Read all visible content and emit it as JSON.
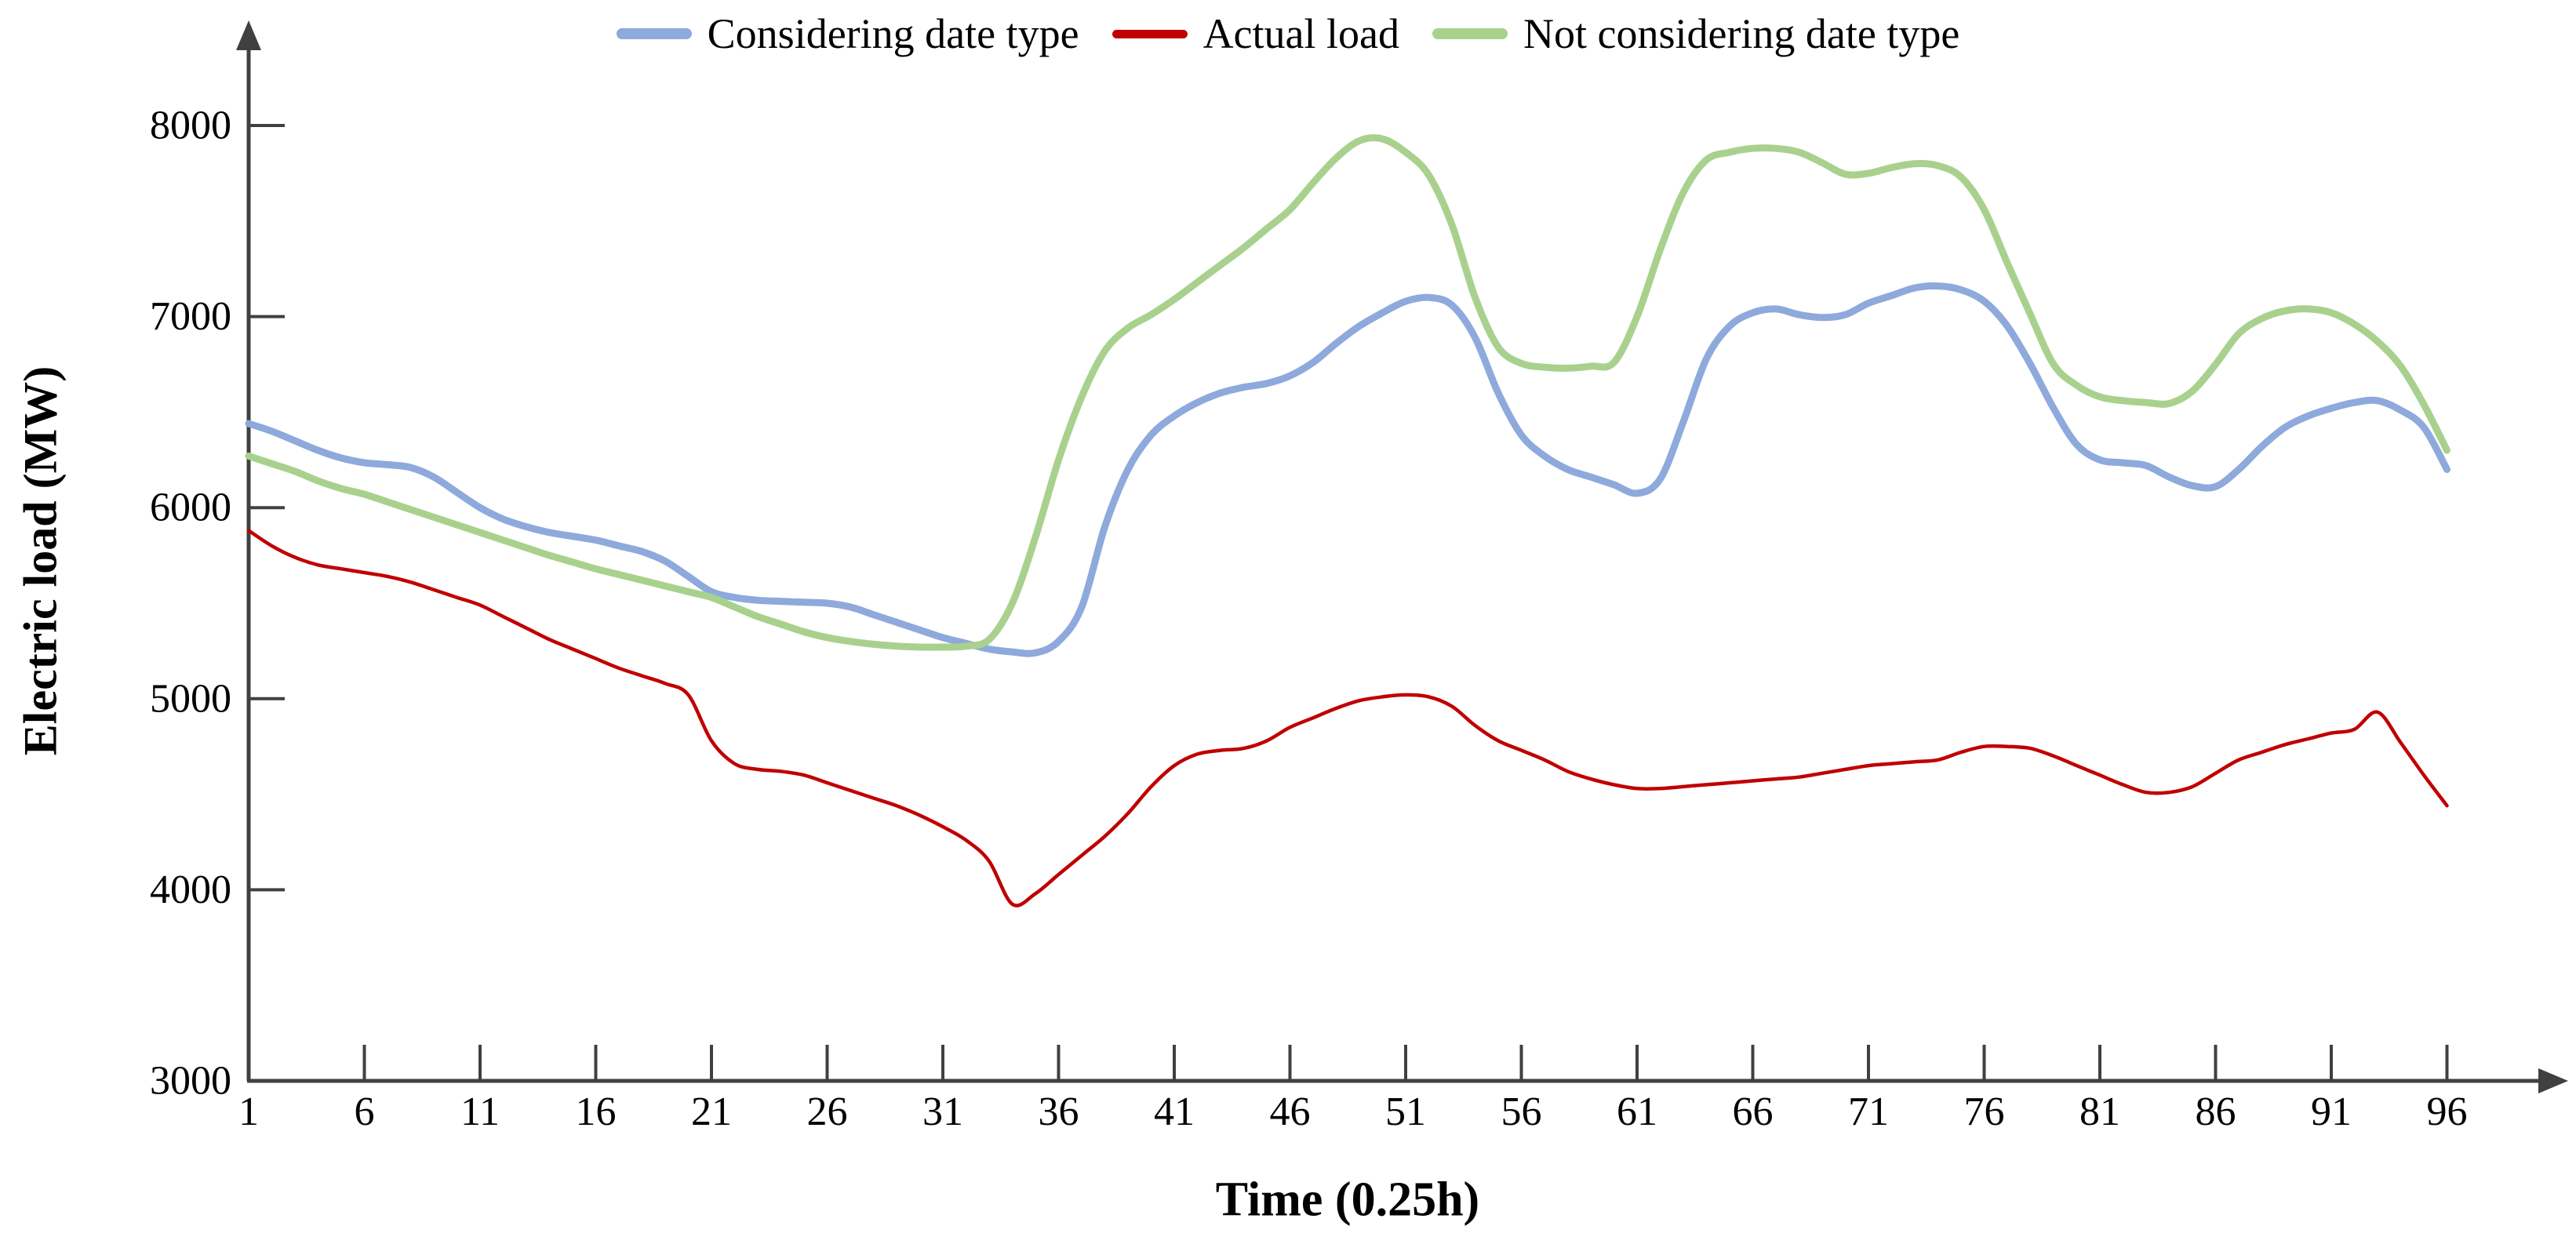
{
  "figure": {
    "background": "#ffffff",
    "axis_color": "#404040"
  },
  "chart_data": {
    "type": "line",
    "title": "",
    "xlabel": "Time (0.25h)",
    "ylabel": "Electric load (MW)",
    "x_range": [
      1,
      96
    ],
    "ylim": [
      3000,
      8000
    ],
    "x_ticks": [
      1,
      6,
      11,
      16,
      21,
      26,
      31,
      36,
      41,
      46,
      51,
      56,
      61,
      66,
      71,
      76,
      81,
      86,
      91,
      96
    ],
    "y_ticks": [
      3000,
      4000,
      5000,
      6000,
      7000,
      8000
    ],
    "grid": false,
    "legend_position": "top-center",
    "series": [
      {
        "name": "Considering date type",
        "color": "#8EA9DB",
        "line_width": 9,
        "values": [
          6440,
          6400,
          6350,
          6300,
          6260,
          6235,
          6225,
          6210,
          6160,
          6080,
          6000,
          5940,
          5900,
          5870,
          5850,
          5830,
          5800,
          5770,
          5720,
          5640,
          5560,
          5530,
          5515,
          5510,
          5505,
          5500,
          5480,
          5440,
          5400,
          5360,
          5320,
          5290,
          5260,
          5245,
          5240,
          5300,
          5480,
          5900,
          6200,
          6380,
          6480,
          6550,
          6600,
          6630,
          6650,
          6690,
          6760,
          6860,
          6950,
          7020,
          7080,
          7100,
          7060,
          6890,
          6600,
          6380,
          6270,
          6200,
          6160,
          6120,
          6075,
          6150,
          6450,
          6780,
          6950,
          7020,
          7040,
          7010,
          6995,
          7010,
          7070,
          7110,
          7150,
          7160,
          7140,
          7080,
          6950,
          6750,
          6520,
          6330,
          6250,
          6235,
          6220,
          6160,
          6115,
          6110,
          6200,
          6320,
          6420,
          6480,
          6520,
          6550,
          6560,
          6510,
          6420,
          6200
        ]
      },
      {
        "name": "Actual load",
        "color": "#C00000",
        "line_width": 4.5,
        "values": [
          5880,
          5800,
          5740,
          5700,
          5680,
          5660,
          5640,
          5610,
          5570,
          5530,
          5490,
          5430,
          5370,
          5310,
          5260,
          5210,
          5160,
          5120,
          5080,
          5020,
          4780,
          4660,
          4630,
          4620,
          4600,
          4560,
          4520,
          4480,
          4440,
          4390,
          4330,
          4260,
          4150,
          3925,
          3980,
          4080,
          4180,
          4280,
          4400,
          4540,
          4650,
          4710,
          4730,
          4740,
          4780,
          4850,
          4900,
          4950,
          4990,
          5010,
          5020,
          5010,
          4960,
          4860,
          4780,
          4730,
          4680,
          4620,
          4580,
          4550,
          4530,
          4530,
          4540,
          4550,
          4560,
          4570,
          4580,
          4590,
          4610,
          4630,
          4650,
          4660,
          4670,
          4680,
          4720,
          4750,
          4750,
          4740,
          4700,
          4650,
          4600,
          4550,
          4510,
          4510,
          4540,
          4610,
          4680,
          4720,
          4760,
          4790,
          4820,
          4840,
          4930,
          4770,
          4600,
          4440
        ]
      },
      {
        "name": "Not considering date type",
        "color": "#A9D18E",
        "line_width": 9,
        "values": [
          6270,
          6230,
          6190,
          6140,
          6100,
          6070,
          6030,
          5990,
          5950,
          5910,
          5870,
          5830,
          5790,
          5750,
          5715,
          5680,
          5650,
          5620,
          5590,
          5560,
          5530,
          5480,
          5430,
          5390,
          5350,
          5320,
          5300,
          5285,
          5275,
          5270,
          5270,
          5275,
          5310,
          5500,
          5845,
          6250,
          6580,
          6820,
          6940,
          7010,
          7090,
          7180,
          7270,
          7360,
          7460,
          7560,
          7700,
          7830,
          7920,
          7930,
          7860,
          7740,
          7480,
          7100,
          6840,
          6755,
          6735,
          6730,
          6740,
          6760,
          7000,
          7350,
          7650,
          7820,
          7860,
          7880,
          7880,
          7860,
          7805,
          7745,
          7750,
          7780,
          7800,
          7790,
          7730,
          7560,
          7280,
          7010,
          6750,
          6640,
          6580,
          6560,
          6550,
          6545,
          6610,
          6750,
          6910,
          6990,
          7030,
          7040,
          7020,
          6960,
          6870,
          6740,
          6540,
          6300
        ]
      }
    ]
  }
}
